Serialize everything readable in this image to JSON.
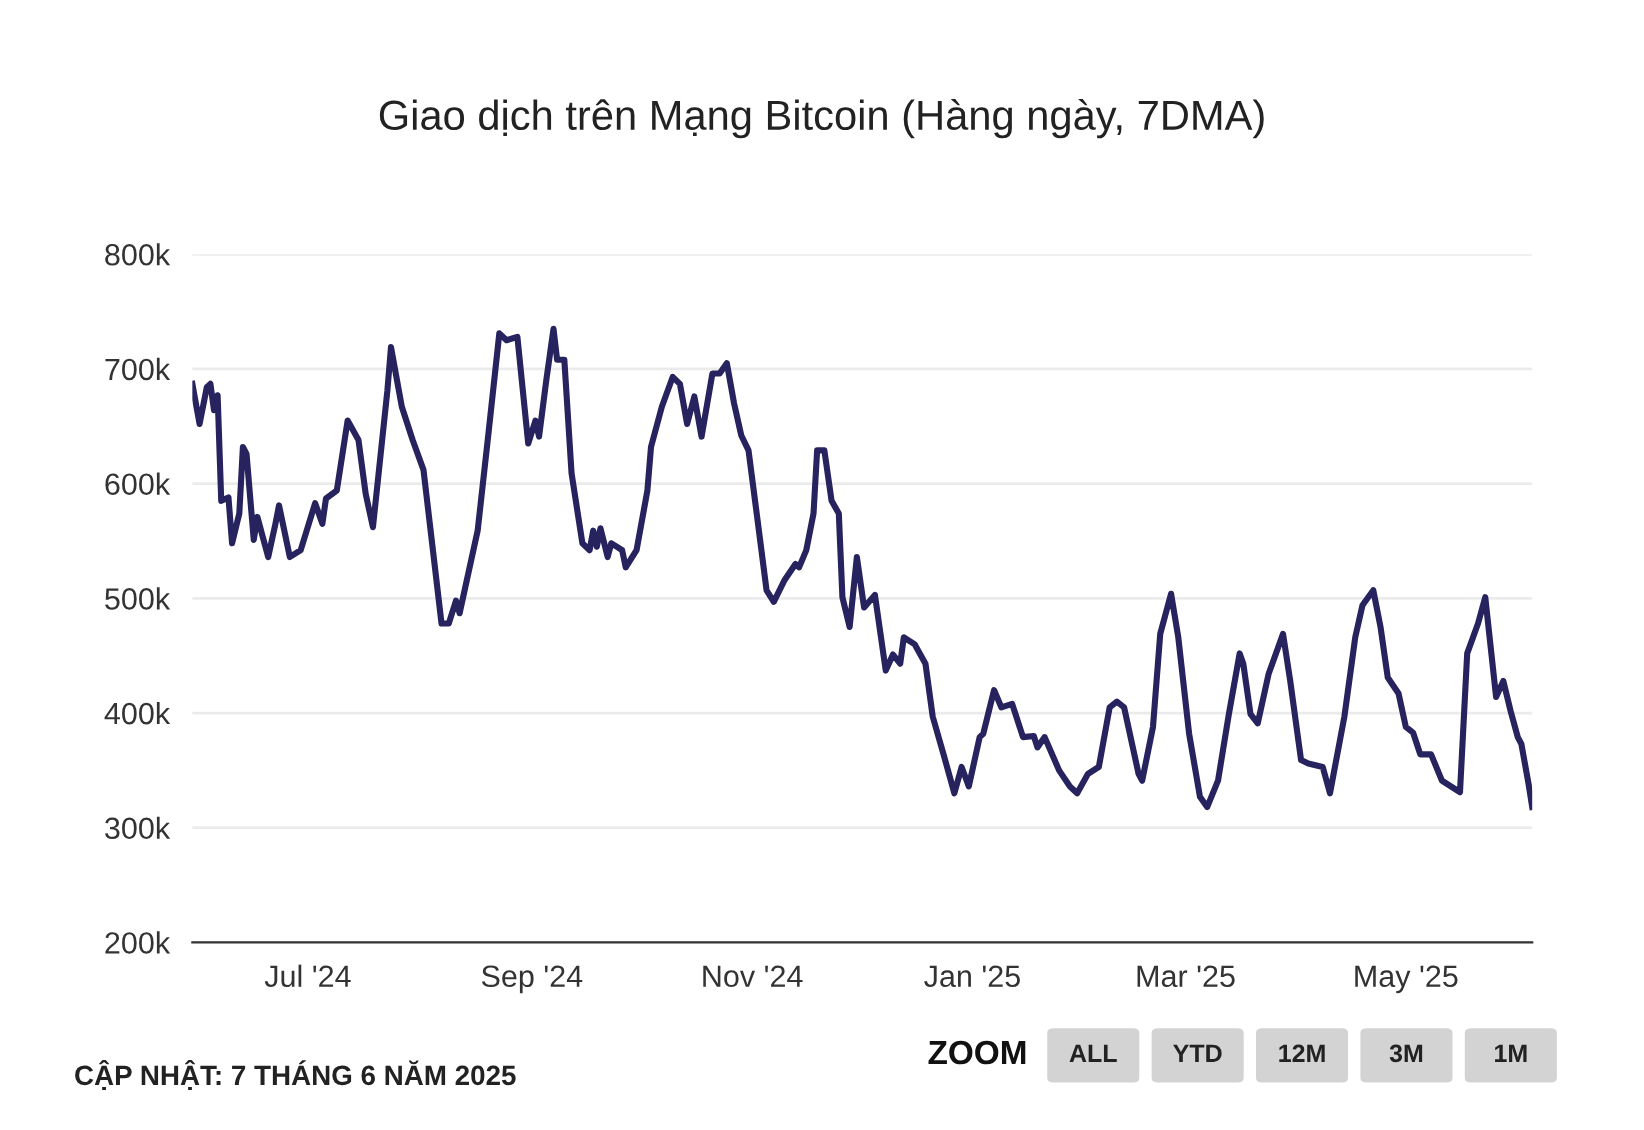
{
  "chart_data": {
    "type": "line",
    "title": "Giao dịch trên Mạng Bitcoin (Hàng ngày, 7DMA)",
    "annotations": [
      "CẬP NHẬT: 7 THÁNG 6 NĂM 2025",
      "ZOOM",
      "ALL",
      "YTD",
      "12M",
      "3M",
      "1M"
    ],
    "x": [
      "2024-05-30",
      "2024-06-01",
      "2024-06-03",
      "2024-06-04",
      "2024-06-05",
      "2024-06-06",
      "2024-06-07",
      "2024-06-09",
      "2024-06-10",
      "2024-06-12",
      "2024-06-13",
      "2024-06-14",
      "2024-06-16",
      "2024-06-17",
      "2024-06-20",
      "2024-06-22",
      "2024-06-23",
      "2024-06-26",
      "2024-06-29",
      "2024-07-03",
      "2024-07-05",
      "2024-07-06",
      "2024-07-09",
      "2024-07-12",
      "2024-07-15",
      "2024-07-17",
      "2024-07-19",
      "2024-07-23",
      "2024-07-24",
      "2024-07-27",
      "2024-07-30",
      "2024-08-02",
      "2024-08-07",
      "2024-08-09",
      "2024-08-11",
      "2024-08-12",
      "2024-08-17",
      "2024-08-20",
      "2024-08-23",
      "2024-08-25",
      "2024-08-28",
      "2024-08-31",
      "2024-09-02",
      "2024-09-03",
      "2024-09-05",
      "2024-09-07",
      "2024-09-08",
      "2024-09-10",
      "2024-09-12",
      "2024-09-15",
      "2024-09-17",
      "2024-09-18",
      "2024-09-19",
      "2024-09-20",
      "2024-09-22",
      "2024-09-23",
      "2024-09-26",
      "2024-09-27",
      "2024-09-30",
      "2024-10-03",
      "2024-10-04",
      "2024-10-07",
      "2024-10-10",
      "2024-10-12",
      "2024-10-14",
      "2024-10-16",
      "2024-10-18",
      "2024-10-21",
      "2024-10-23",
      "2024-10-25",
      "2024-10-27",
      "2024-10-29",
      "2024-10-31",
      "2024-11-03",
      "2024-11-05",
      "2024-11-07",
      "2024-11-10",
      "2024-11-13",
      "2024-11-14",
      "2024-11-16",
      "2024-11-18",
      "2024-11-19",
      "2024-11-21",
      "2024-11-23",
      "2024-11-25",
      "2024-11-26",
      "2024-11-28",
      "2024-11-30",
      "2024-12-02",
      "2024-12-05",
      "2024-12-08",
      "2024-12-10",
      "2024-12-12",
      "2024-12-13",
      "2024-12-16",
      "2024-12-19",
      "2024-12-21",
      "2024-12-24",
      "2024-12-27",
      "2024-12-29",
      "2024-12-31",
      "2025-01-03",
      "2025-01-04",
      "2025-01-07",
      "2025-01-09",
      "2025-01-12",
      "2025-01-15",
      "2025-01-18",
      "2025-01-19",
      "2025-01-21",
      "2025-01-25",
      "2025-01-28",
      "2025-01-30",
      "2025-02-02",
      "2025-02-05",
      "2025-02-08",
      "2025-02-10",
      "2025-02-12",
      "2025-02-16",
      "2025-02-17",
      "2025-02-20",
      "2025-02-22",
      "2025-02-25",
      "2025-02-27",
      "2025-03-02",
      "2025-03-05",
      "2025-03-07",
      "2025-03-10",
      "2025-03-13",
      "2025-03-16",
      "2025-03-17",
      "2025-03-19",
      "2025-03-21",
      "2025-03-24",
      "2025-03-28",
      "2025-03-30",
      "2025-04-02",
      "2025-04-04",
      "2025-04-08",
      "2025-04-10",
      "2025-04-14",
      "2025-04-17",
      "2025-04-19",
      "2025-04-22",
      "2025-04-24",
      "2025-04-26",
      "2025-04-29",
      "2025-05-01",
      "2025-05-03",
      "2025-05-05",
      "2025-05-08",
      "2025-05-11",
      "2025-05-15",
      "2025-05-16",
      "2025-05-18",
      "2025-05-21",
      "2025-05-23",
      "2025-05-26",
      "2025-05-28",
      "2025-05-30",
      "2025-06-01",
      "2025-06-02",
      "2025-06-04",
      "2025-06-05"
    ],
    "series": [
      {
        "color": "#27235e",
        "values": [
          687,
          652,
          684,
          687,
          664,
          677,
          585,
          588,
          548,
          574,
          632,
          626,
          551,
          571,
          536,
          565,
          581,
          536,
          542,
          583,
          565,
          587,
          594,
          655,
          638,
          591,
          562,
          681,
          719,
          667,
          638,
          612,
          478,
          478,
          498,
          487,
          559,
          644,
          731,
          725,
          728,
          635,
          655,
          641,
          690,
          735,
          708,
          708,
          609,
          548,
          542,
          559,
          545,
          561,
          536,
          548,
          542,
          527,
          542,
          594,
          632,
          667,
          693,
          687,
          652,
          676,
          641,
          696,
          696,
          705,
          670,
          642,
          629,
          556,
          507,
          497,
          516,
          530,
          527,
          542,
          574,
          629,
          629,
          585,
          574,
          501,
          475,
          536,
          492,
          503,
          437,
          451,
          443,
          466,
          460,
          443,
          397,
          364,
          330,
          353,
          336,
          379,
          382,
          420,
          405,
          408,
          379,
          380,
          370,
          379,
          350,
          336,
          330,
          347,
          353,
          405,
          410,
          405,
          347,
          341,
          388,
          469,
          504,
          466,
          382,
          327,
          318,
          341,
          399,
          452,
          443,
          399,
          391,
          434,
          469,
          428,
          359,
          356,
          353,
          330,
          397,
          466,
          494,
          507,
          475,
          431,
          417,
          388,
          383,
          364,
          364,
          341,
          333,
          331,
          452,
          478,
          501,
          414,
          428,
          402,
          379,
          373,
          338,
          318
        ]
      }
    ],
    "xlim": [
      "2024-05-30",
      "2025-06-05"
    ],
    "xticks": [
      {
        "value": "2024-07-01",
        "label": "Jul '24"
      },
      {
        "value": "2024-09-01",
        "label": "Sep '24"
      },
      {
        "value": "2024-11-01",
        "label": "Nov '24"
      },
      {
        "value": "2025-01-01",
        "label": "Jan '25"
      },
      {
        "value": "2025-03-01",
        "label": "Mar '25"
      },
      {
        "value": "2025-05-01",
        "label": "May '25"
      }
    ],
    "ylim": [
      200,
      800
    ],
    "yticks": [
      {
        "value": 200,
        "label": "200k"
      },
      {
        "value": 300,
        "label": "300k"
      },
      {
        "value": 400,
        "label": "400k"
      },
      {
        "value": 500,
        "label": "500k"
      },
      {
        "value": 600,
        "label": "600k"
      },
      {
        "value": 700,
        "label": "700k"
      },
      {
        "value": 800,
        "label": "800k"
      }
    ],
    "grid": "y",
    "marker": "none",
    "line_style": "solid",
    "legend": false
  }
}
